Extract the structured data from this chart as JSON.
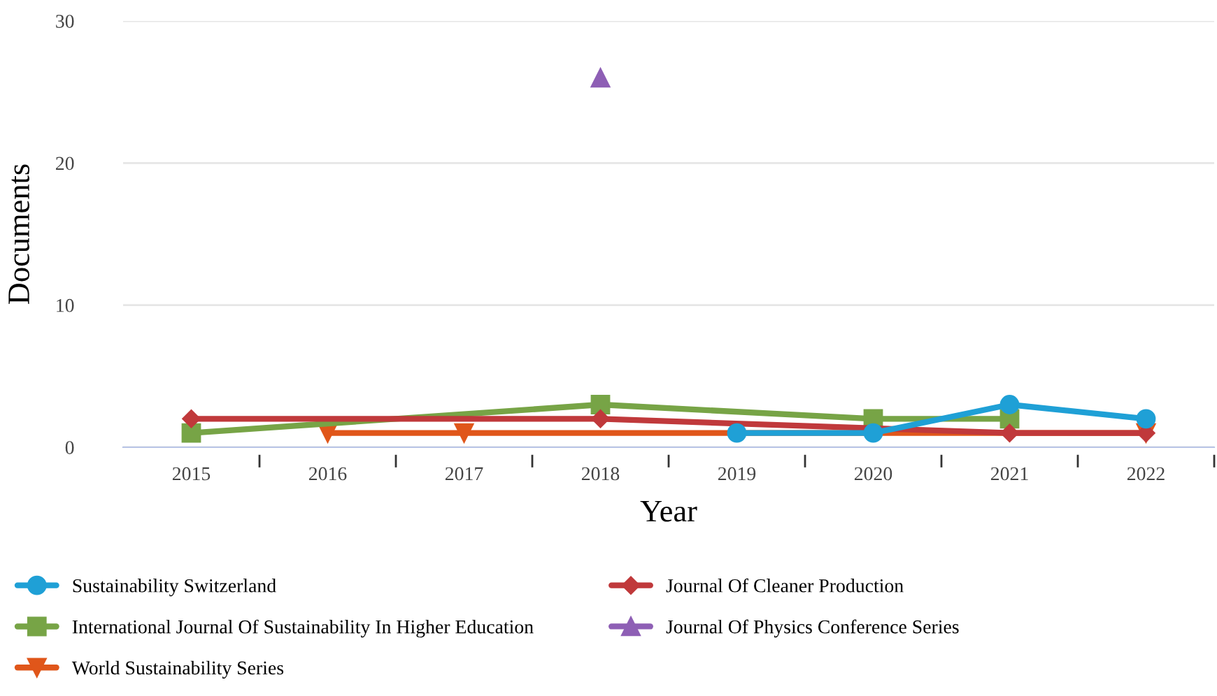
{
  "chart_data": {
    "type": "line",
    "xlabel": "Year",
    "ylabel": "Documents",
    "categories": [
      "2015",
      "2016",
      "2017",
      "2018",
      "2019",
      "2020",
      "2021",
      "2022"
    ],
    "ylim": [
      0,
      30
    ],
    "yticks": [
      0,
      10,
      20,
      30
    ],
    "grid": "y",
    "legend": "bottom",
    "series": [
      {
        "name": "Sustainability Switzerland",
        "color": "#1fa0d6",
        "marker": "circle",
        "values": [
          null,
          null,
          null,
          null,
          1,
          1,
          3,
          2
        ]
      },
      {
        "name": "Journal Of Cleaner Production",
        "color": "#c0393b",
        "marker": "diamond",
        "values": [
          2,
          null,
          null,
          2,
          null,
          null,
          1,
          1
        ]
      },
      {
        "name": "International Journal Of Sustainability In Higher Education",
        "color": "#77a446",
        "marker": "square",
        "values": [
          1,
          null,
          null,
          3,
          null,
          2,
          2,
          null
        ]
      },
      {
        "name": "Journal Of Physics Conference Series",
        "color": "#8e5fb5",
        "marker": "triangle",
        "values": [
          null,
          null,
          null,
          26,
          null,
          null,
          null,
          null
        ]
      },
      {
        "name": "World Sustainability Series",
        "color": "#e0561a",
        "marker": "triangle_down",
        "values": [
          null,
          1,
          1,
          null,
          null,
          null,
          null,
          1
        ]
      }
    ]
  }
}
